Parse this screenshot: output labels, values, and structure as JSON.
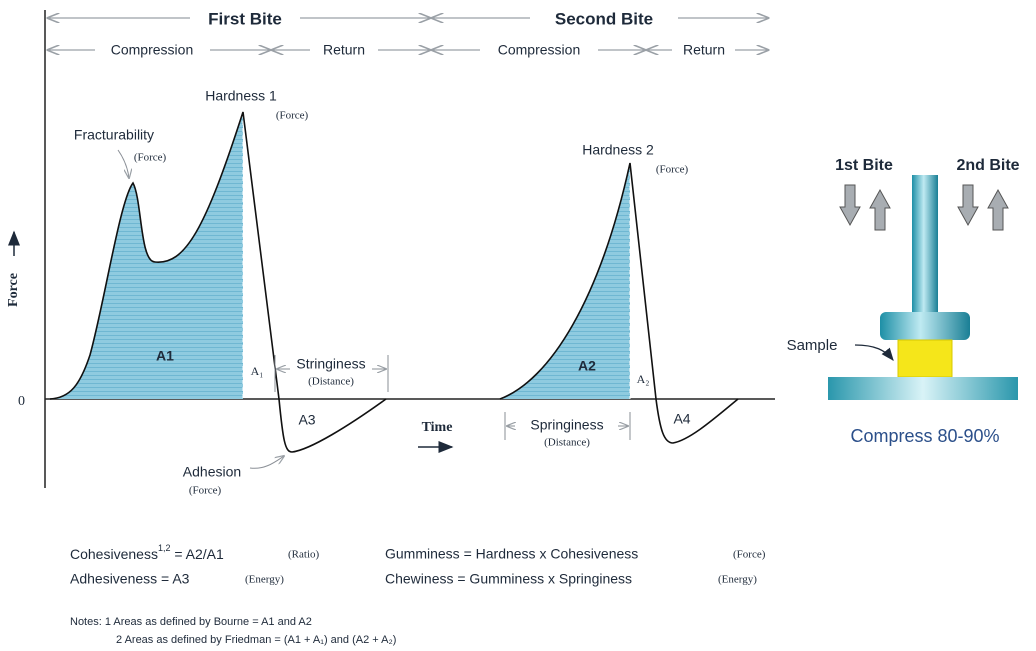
{
  "phases": {
    "first_bite": "First Bite",
    "second_bite": "Second Bite",
    "compression_1": "Compression",
    "return_1": "Return",
    "compression_2": "Compression",
    "return_2": "Return"
  },
  "axes": {
    "y_label": "Force",
    "origin": "0",
    "x_label": "Time"
  },
  "curve_labels": {
    "hardness_1": "Hardness 1",
    "hardness_1_unit": "(Force)",
    "fracturability": "Fracturability",
    "fracturability_unit": "(Force)",
    "hardness_2": "Hardness 2",
    "hardness_2_unit": "(Force)",
    "area_a1": "A1",
    "area_a1_sub": "A₁",
    "stringiness": "Stringiness",
    "stringiness_unit": "(Distance)",
    "area_a3": "A3",
    "adhesion": "Adhesion",
    "adhesion_unit": "(Force)",
    "area_a2": "A2",
    "area_a2_sub": "A₂",
    "springiness": "Springiness",
    "springiness_unit": "(Distance)",
    "area_a4": "A4"
  },
  "apparatus": {
    "first_bite": "1st Bite",
    "second_bite": "2nd Bite",
    "sample": "Sample",
    "compress": "Compress 80-90%"
  },
  "formulas": {
    "cohesiveness": "Cohesiveness",
    "cohesiveness_sup": "1,2",
    "cohesiveness_eq": " = A2/A1",
    "cohesiveness_unit": "(Ratio)",
    "adhesiveness": "Adhesiveness = A3",
    "adhesiveness_unit": "(Energy)",
    "gumminess": "Gumminess = Hardness x Cohesiveness",
    "gumminess_unit": "(Force)",
    "chewiness": "Chewiness = Gumminess x Springiness",
    "chewiness_unit": "(Energy)"
  },
  "notes": {
    "note_1": "Notes: 1 Areas as defined by Bourne = A1 and A2",
    "note_2": "2 Areas as defined by Friedman = (A1 + A₁) and (A2 + A₂)"
  }
}
